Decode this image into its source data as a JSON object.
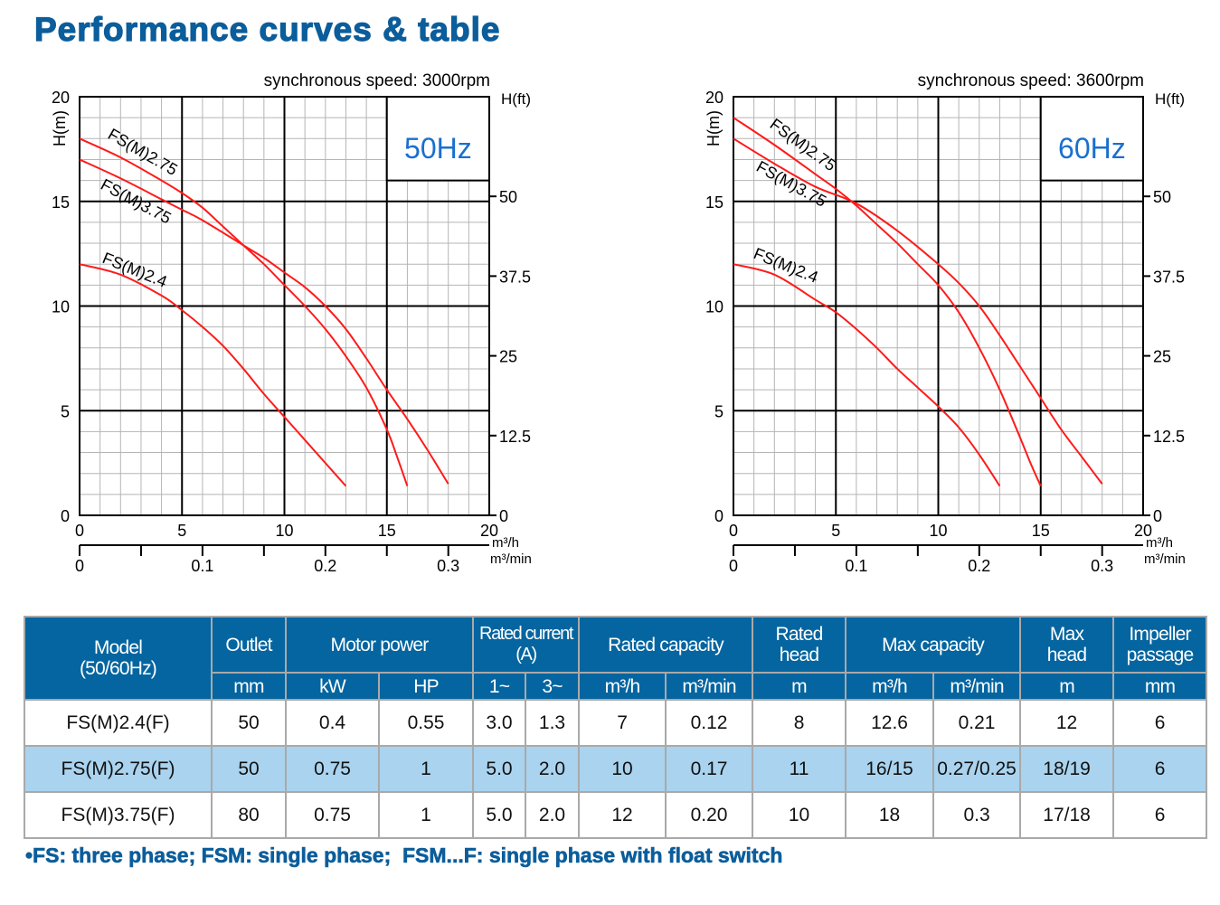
{
  "title": "Performance curves & table",
  "chart_data": [
    {
      "type": "line",
      "title": "synchronous speed: 3000rpm",
      "hz_label": "50Hz",
      "xlabel": "m³/h",
      "x2label": "m³/min",
      "ylabel": "H(m)",
      "y2label": "H(ft)",
      "xlim": [
        0,
        20
      ],
      "ylim": [
        0,
        20
      ],
      "xticks": [
        0,
        5,
        10,
        15,
        20
      ],
      "yticks": [
        0,
        5,
        10,
        15,
        20
      ],
      "x2ticks": [
        "0",
        "0.1",
        "0.2",
        "0.3"
      ],
      "y2ticks": [
        "0",
        "12.5",
        "25",
        "37.5",
        "50"
      ],
      "grid": true,
      "series": [
        {
          "name": "FS(M)2.75",
          "x": [
            0,
            2,
            4,
            5,
            6,
            7,
            8,
            9,
            10,
            11,
            12,
            13,
            14,
            15,
            15.5,
            16
          ],
          "y": [
            18,
            17.1,
            16,
            15.4,
            14.7,
            13.8,
            12.9,
            12,
            11,
            10,
            8.9,
            7.6,
            6.1,
            4.1,
            2.8,
            1.4
          ]
        },
        {
          "name": "FS(M)3.75",
          "x": [
            0,
            2,
            4,
            5,
            6,
            8,
            9,
            10,
            11,
            12,
            13,
            14,
            15,
            16,
            17,
            18
          ],
          "y": [
            17,
            16.1,
            15.1,
            14.6,
            14.1,
            12.9,
            12.3,
            11.6,
            10.9,
            10,
            8.9,
            7.5,
            6,
            4.6,
            3.1,
            1.5
          ]
        },
        {
          "name": "FS(M)2.4",
          "x": [
            0,
            2,
            4,
            5,
            6,
            7,
            8,
            9,
            10,
            11,
            12,
            13
          ],
          "y": [
            12,
            11.5,
            10.5,
            9.8,
            9,
            8.1,
            7,
            5.8,
            4.7,
            3.6,
            2.5,
            1.4
          ]
        }
      ]
    },
    {
      "type": "line",
      "title": "synchronous speed: 3600rpm",
      "hz_label": "60Hz",
      "xlabel": "m³/h",
      "x2label": "m³/min",
      "ylabel": "H(m)",
      "y2label": "H(ft)",
      "xlim": [
        0,
        20
      ],
      "ylim": [
        0,
        20
      ],
      "xticks": [
        0,
        5,
        10,
        15,
        20
      ],
      "yticks": [
        0,
        5,
        10,
        15,
        20
      ],
      "x2ticks": [
        "0",
        "0.1",
        "0.2",
        "0.3"
      ],
      "y2ticks": [
        "0",
        "12.5",
        "25",
        "37.5",
        "50"
      ],
      "grid": true,
      "series": [
        {
          "name": "FS(M)2.75",
          "x": [
            0,
            2,
            4,
            5,
            6,
            7,
            8,
            9,
            10,
            11,
            12,
            13,
            14,
            14.5,
            15
          ],
          "y": [
            19,
            17.7,
            16.3,
            15.6,
            14.8,
            13.9,
            13,
            12,
            11,
            9.7,
            8,
            6,
            3.7,
            2.5,
            1.4
          ]
        },
        {
          "name": "FS(M)3.75",
          "x": [
            0,
            2,
            4,
            6,
            8,
            10,
            11,
            12,
            13,
            14,
            15,
            16,
            17,
            18
          ],
          "y": [
            18,
            16.8,
            15.7,
            14.9,
            13.6,
            12,
            11.1,
            10,
            8.6,
            7.1,
            5.6,
            4.1,
            2.8,
            1.5
          ]
        },
        {
          "name": "FS(M)2.4",
          "x": [
            0,
            2,
            4,
            5,
            6,
            7,
            8,
            9,
            10,
            11,
            12,
            13
          ],
          "y": [
            12,
            11.5,
            10.3,
            9.7,
            8.9,
            8,
            7,
            6.1,
            5.2,
            4.2,
            2.9,
            1.4
          ]
        }
      ]
    }
  ],
  "table": {
    "head1": {
      "model": "Model",
      "model_sub": "(50/60Hz)",
      "outlet": "Outlet",
      "motor_power": "Motor power",
      "rated_current": "Rated current",
      "rated_current_sub": "(A)",
      "rated_capacity": "Rated capacity",
      "rated_head": "Rated",
      "rated_head_sub": "head",
      "max_capacity": "Max capacity",
      "max_head": "Max",
      "max_head_sub": "head",
      "impeller": "Impeller",
      "impeller_sub": "passage"
    },
    "head2": [
      "mm",
      "kW",
      "HP",
      "1~",
      "3~",
      "m³/h",
      "m³/min",
      "m",
      "m³/h",
      "m³/min",
      "m",
      "mm"
    ],
    "rows": [
      [
        "FS(M)2.4(F)",
        "50",
        "0.4",
        "0.55",
        "3.0",
        "1.3",
        "7",
        "0.12",
        "8",
        "12.6",
        "0.21",
        "12",
        "6"
      ],
      [
        "FS(M)2.75(F)",
        "50",
        "0.75",
        "1",
        "5.0",
        "2.0",
        "10",
        "0.17",
        "11",
        "16/15",
        "0.27/0.25",
        "18/19",
        "6"
      ],
      [
        "FS(M)3.75(F)",
        "80",
        "0.75",
        "1",
        "5.0",
        "2.0",
        "12",
        "0.20",
        "10",
        "18",
        "0.3",
        "17/18",
        "6"
      ]
    ]
  },
  "note": "•FS: three phase; FSM: single phase;  FSM...F: single phase with float switch",
  "colors": {
    "brand": "#0b5d9b",
    "header": "#0565a0",
    "highlight_row": "#a9d3ee",
    "curve": "#ff1a1a",
    "hz_label": "#1a6fcf"
  }
}
